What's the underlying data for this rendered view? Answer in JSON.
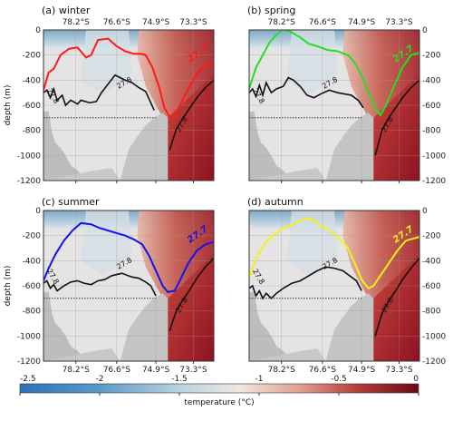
{
  "chart_data": {
    "type": "heatmap",
    "colorbar": {
      "label": "temperature (°C)",
      "range": [
        -2.5,
        0
      ],
      "ticks": [
        "-2.5",
        "-2",
        "-1.5",
        "-1",
        "-0.5",
        "0"
      ]
    },
    "ylabel": "depth (m)",
    "y_ticks": [
      "0",
      "-200",
      "-400",
      "-600",
      "-800",
      "-1000",
      "-1200"
    ],
    "ylim": [
      -1200,
      0
    ],
    "x_ticks": [
      "78.2°S",
      "76.6°S",
      "74.9°S",
      "73.3°S"
    ],
    "contour_labels": {
      "black": "27.8",
      "colored": "27.7"
    },
    "panels": [
      {
        "title": "(a) winter",
        "line_color": "#ff1a1a",
        "isopycnal_27_7": [
          [
            0.0,
            -480
          ],
          [
            0.03,
            -340
          ],
          [
            0.06,
            -310
          ],
          [
            0.1,
            -200
          ],
          [
            0.15,
            -150
          ],
          [
            0.2,
            -140
          ],
          [
            0.25,
            -220
          ],
          [
            0.28,
            -200
          ],
          [
            0.32,
            -80
          ],
          [
            0.38,
            -70
          ],
          [
            0.43,
            -130
          ],
          [
            0.48,
            -170
          ],
          [
            0.53,
            -190
          ],
          [
            0.57,
            -190
          ],
          [
            0.6,
            -200
          ],
          [
            0.64,
            -300
          ],
          [
            0.68,
            -460
          ],
          [
            0.71,
            -620
          ],
          [
            0.74,
            -690
          ],
          [
            0.77,
            -690
          ],
          [
            0.8,
            -600
          ],
          [
            0.85,
            -470
          ],
          [
            0.9,
            -350
          ],
          [
            0.95,
            -280
          ],
          [
            1.0,
            -260
          ]
        ],
        "isopycnal_27_8": [
          [
            0.0,
            -500
          ],
          [
            0.02,
            -480
          ],
          [
            0.04,
            -540
          ],
          [
            0.06,
            -470
          ],
          [
            0.08,
            -560
          ],
          [
            0.11,
            -520
          ],
          [
            0.13,
            -600
          ],
          [
            0.16,
            -560
          ],
          [
            0.2,
            -590
          ],
          [
            0.22,
            -560
          ],
          [
            0.27,
            -580
          ],
          [
            0.31,
            -570
          ],
          [
            0.34,
            -500
          ],
          [
            0.38,
            -430
          ],
          [
            0.42,
            -360
          ],
          [
            0.48,
            -400
          ],
          [
            0.52,
            -420
          ],
          [
            0.56,
            -460
          ],
          [
            0.6,
            -490
          ],
          [
            0.63,
            -580
          ],
          [
            0.65,
            -640
          ]
        ],
        "isopycnal_27_8_deep": [
          [
            0.74,
            -960
          ],
          [
            0.78,
            -790
          ],
          [
            0.82,
            -700
          ],
          [
            0.86,
            -620
          ],
          [
            0.9,
            -540
          ],
          [
            0.95,
            -460
          ],
          [
            1.0,
            -400
          ]
        ]
      },
      {
        "title": "(b) spring",
        "line_color": "#22e022",
        "isopycnal_27_7": [
          [
            0.0,
            -470
          ],
          [
            0.04,
            -300
          ],
          [
            0.08,
            -200
          ],
          [
            0.12,
            -100
          ],
          [
            0.16,
            -40
          ],
          [
            0.2,
            10
          ],
          [
            0.25,
            -20
          ],
          [
            0.3,
            -60
          ],
          [
            0.35,
            -110
          ],
          [
            0.4,
            -130
          ],
          [
            0.46,
            -160
          ],
          [
            0.52,
            -170
          ],
          [
            0.58,
            -200
          ],
          [
            0.62,
            -260
          ],
          [
            0.66,
            -360
          ],
          [
            0.7,
            -500
          ],
          [
            0.74,
            -620
          ],
          [
            0.77,
            -680
          ],
          [
            0.8,
            -610
          ],
          [
            0.85,
            -450
          ],
          [
            0.9,
            -300
          ],
          [
            0.95,
            -200
          ],
          [
            1.0,
            -180
          ]
        ],
        "isopycnal_27_8": [
          [
            0.0,
            -500
          ],
          [
            0.02,
            -470
          ],
          [
            0.04,
            -530
          ],
          [
            0.06,
            -440
          ],
          [
            0.08,
            -520
          ],
          [
            0.1,
            -420
          ],
          [
            0.13,
            -500
          ],
          [
            0.16,
            -470
          ],
          [
            0.2,
            -450
          ],
          [
            0.23,
            -380
          ],
          [
            0.26,
            -400
          ],
          [
            0.3,
            -450
          ],
          [
            0.34,
            -520
          ],
          [
            0.38,
            -540
          ],
          [
            0.42,
            -510
          ],
          [
            0.47,
            -480
          ],
          [
            0.52,
            -500
          ],
          [
            0.56,
            -510
          ],
          [
            0.6,
            -520
          ],
          [
            0.64,
            -560
          ],
          [
            0.67,
            -620
          ]
        ],
        "isopycnal_27_8_deep": [
          [
            0.74,
            -1000
          ],
          [
            0.78,
            -800
          ],
          [
            0.82,
            -700
          ],
          [
            0.86,
            -620
          ],
          [
            0.9,
            -540
          ],
          [
            0.95,
            -460
          ],
          [
            1.0,
            -400
          ]
        ]
      },
      {
        "title": "(c) summer",
        "line_color": "#1414e6",
        "isopycnal_27_7": [
          [
            0.0,
            -560
          ],
          [
            0.03,
            -460
          ],
          [
            0.07,
            -350
          ],
          [
            0.12,
            -240
          ],
          [
            0.17,
            -160
          ],
          [
            0.22,
            -100
          ],
          [
            0.28,
            -110
          ],
          [
            0.33,
            -140
          ],
          [
            0.38,
            -160
          ],
          [
            0.43,
            -180
          ],
          [
            0.48,
            -200
          ],
          [
            0.53,
            -230
          ],
          [
            0.58,
            -270
          ],
          [
            0.62,
            -360
          ],
          [
            0.66,
            -480
          ],
          [
            0.7,
            -600
          ],
          [
            0.73,
            -650
          ],
          [
            0.77,
            -640
          ],
          [
            0.8,
            -560
          ],
          [
            0.85,
            -420
          ],
          [
            0.9,
            -320
          ],
          [
            0.95,
            -270
          ],
          [
            1.0,
            -250
          ]
        ],
        "isopycnal_27_8": [
          [
            0.0,
            -580
          ],
          [
            0.02,
            -560
          ],
          [
            0.04,
            -620
          ],
          [
            0.06,
            -590
          ],
          [
            0.08,
            -640
          ],
          [
            0.12,
            -600
          ],
          [
            0.16,
            -570
          ],
          [
            0.2,
            -560
          ],
          [
            0.24,
            -580
          ],
          [
            0.28,
            -590
          ],
          [
            0.32,
            -560
          ],
          [
            0.36,
            -550
          ],
          [
            0.4,
            -520
          ],
          [
            0.46,
            -500
          ],
          [
            0.52,
            -530
          ],
          [
            0.56,
            -540
          ],
          [
            0.6,
            -570
          ],
          [
            0.63,
            -600
          ],
          [
            0.66,
            -680
          ]
        ],
        "isopycnal_27_8_deep": [
          [
            0.74,
            -960
          ],
          [
            0.78,
            -800
          ],
          [
            0.82,
            -710
          ],
          [
            0.86,
            -630
          ],
          [
            0.9,
            -540
          ],
          [
            0.95,
            -450
          ],
          [
            1.0,
            -380
          ]
        ]
      },
      {
        "title": "(d) autumn",
        "line_color": "#f2f21a",
        "isopycnal_27_7": [
          [
            0.0,
            -540
          ],
          [
            0.03,
            -420
          ],
          [
            0.06,
            -330
          ],
          [
            0.1,
            -250
          ],
          [
            0.14,
            -200
          ],
          [
            0.18,
            -160
          ],
          [
            0.22,
            -130
          ],
          [
            0.26,
            -110
          ],
          [
            0.3,
            -80
          ],
          [
            0.34,
            -60
          ],
          [
            0.38,
            -80
          ],
          [
            0.42,
            -120
          ],
          [
            0.46,
            -150
          ],
          [
            0.5,
            -190
          ],
          [
            0.54,
            -240
          ],
          [
            0.58,
            -300
          ],
          [
            0.62,
            -420
          ],
          [
            0.66,
            -550
          ],
          [
            0.7,
            -620
          ],
          [
            0.73,
            -600
          ],
          [
            0.77,
            -520
          ],
          [
            0.82,
            -420
          ],
          [
            0.87,
            -320
          ],
          [
            0.92,
            -240
          ],
          [
            1.0,
            -210
          ]
        ],
        "isopycnal_27_8": [
          [
            0.0,
            -620
          ],
          [
            0.02,
            -600
          ],
          [
            0.04,
            -680
          ],
          [
            0.06,
            -640
          ],
          [
            0.08,
            -700
          ],
          [
            0.1,
            -660
          ],
          [
            0.13,
            -700
          ],
          [
            0.16,
            -660
          ],
          [
            0.2,
            -620
          ],
          [
            0.25,
            -580
          ],
          [
            0.3,
            -560
          ],
          [
            0.35,
            -520
          ],
          [
            0.4,
            -480
          ],
          [
            0.45,
            -450
          ],
          [
            0.5,
            -460
          ],
          [
            0.55,
            -480
          ],
          [
            0.59,
            -520
          ],
          [
            0.63,
            -560
          ],
          [
            0.66,
            -640
          ]
        ],
        "isopycnal_27_8_deep": [
          [
            0.74,
            -1000
          ],
          [
            0.78,
            -820
          ],
          [
            0.82,
            -720
          ],
          [
            0.86,
            -640
          ],
          [
            0.9,
            -550
          ],
          [
            0.95,
            -460
          ],
          [
            1.0,
            -380
          ]
        ]
      }
    ]
  }
}
